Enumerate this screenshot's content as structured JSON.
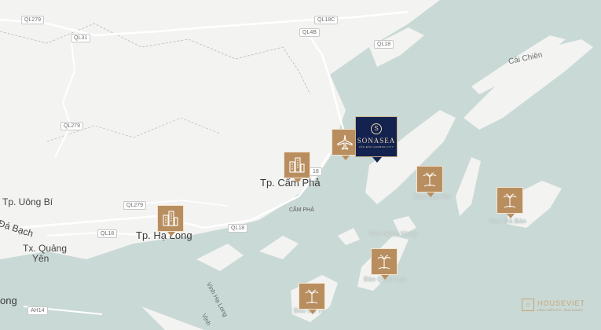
{
  "roads": {
    "ql279_a": "QL279",
    "ql18c": "QL18C",
    "ql31": "QL31",
    "ql4b": "QL4B",
    "ql18_a": "QL18",
    "ql279_b": "QL279",
    "ql18_b": "18",
    "ql279_c": "QL279",
    "ql18_c": "QL18",
    "ql18_d": "QL18",
    "ah14": "AH14"
  },
  "places": {
    "cai_chien": "Cái Chiên",
    "uong_bi": "Tp. Uông Bí",
    "dabach": "Đá Bạch",
    "quang_yen_1": "Tx. Quảng",
    "quang_yen_2": "Yên",
    "cam_pha_city": "Tp. Cẩm Phả",
    "cam_pha": "CẨM PHẢ",
    "ha_long_city": "Tp. Hạ Long",
    "vinh_ha_long": "Vịnh Hạ Long",
    "vinh": "Vịnh",
    "ong": "ong"
  },
  "faded_labels": [
    "Đảo Vân Hải",
    "Đảo Ngọc Vừng",
    "Đảo Trà Bản",
    "Đảo Quan Lạn",
    "Đảo Cô Tô"
  ],
  "sonasea": {
    "mark": "S",
    "name": "SONASEA",
    "tagline": "VÂN ĐỒN HARBOR CITY"
  },
  "watermark": {
    "name": "HOUSEVIET",
    "tagline": "ĐĂNG MIỄN PHÍ - MUA NHANH"
  },
  "colors": {
    "land": "#f3f3f1",
    "water": "#c9d9d6",
    "marker": "#b98e5f",
    "sonasea": "#13224e"
  },
  "icons": [
    "airport-icon",
    "buildings-icon",
    "palm-tree-icon"
  ]
}
